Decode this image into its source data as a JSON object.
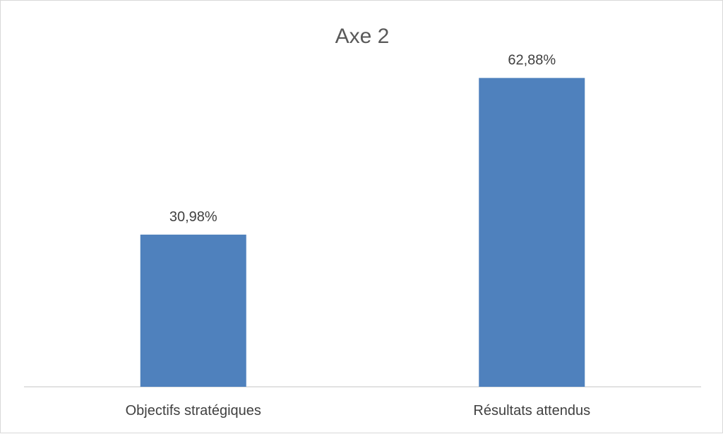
{
  "chart_data": {
    "type": "bar",
    "title": "Axe 2",
    "categories": [
      "Objectifs stratégiques",
      "Résultats attendus"
    ],
    "values": [
      30.98,
      62.88
    ],
    "data_labels": [
      "30,98%",
      "62,88%"
    ],
    "xlabel": "",
    "ylabel": "",
    "ylim": [
      0,
      70
    ],
    "grid": false,
    "legend": "none",
    "colors": {
      "bar": "#4f81bd",
      "axis": "#d9d9d9",
      "text": "#404040",
      "title": "#595959"
    }
  }
}
